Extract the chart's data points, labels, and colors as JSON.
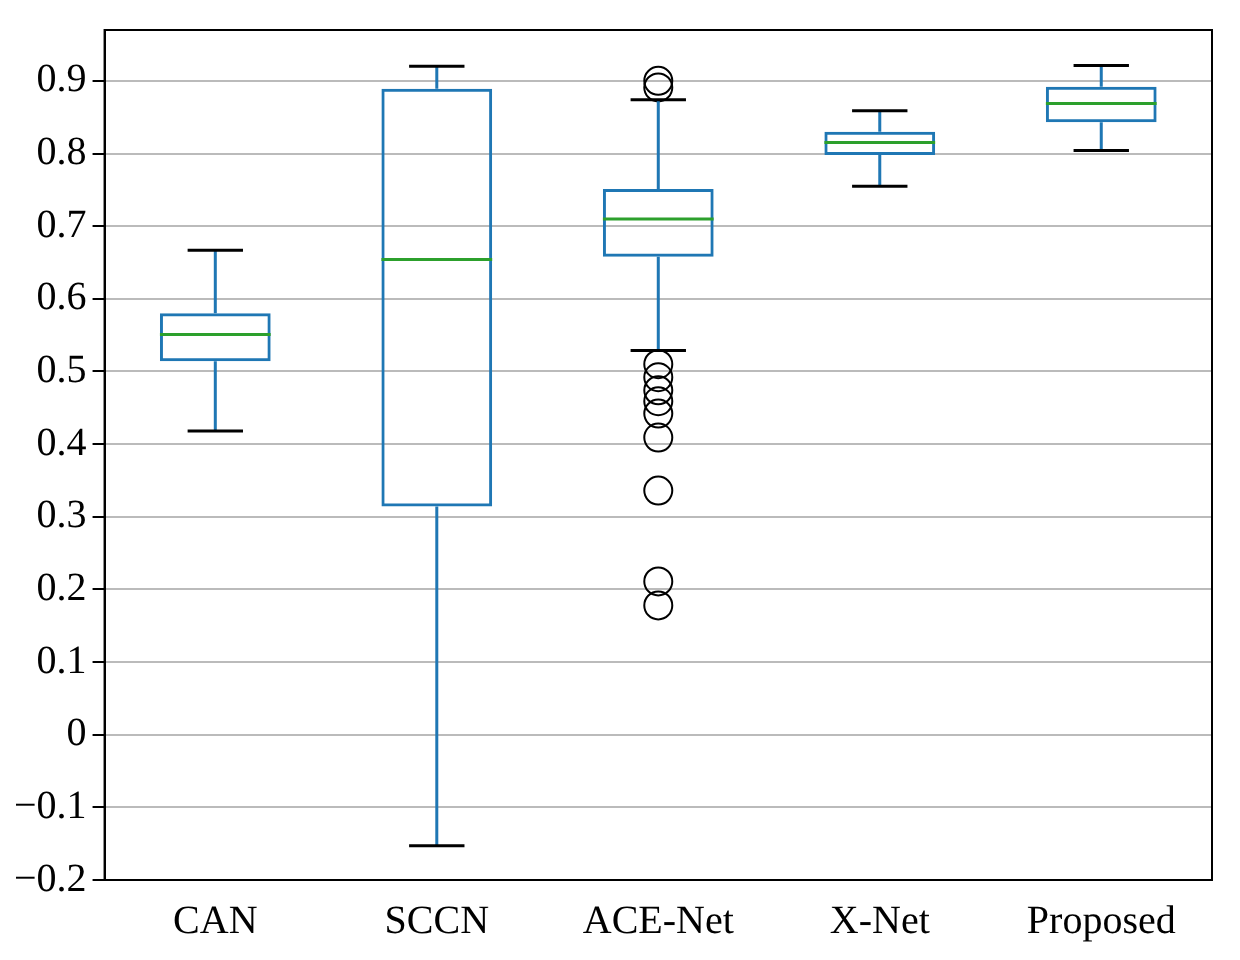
{
  "chart_data": {
    "type": "box",
    "categories": [
      "CAN",
      "SCCN",
      "ACE-Net",
      "X-Net",
      "Proposed"
    ],
    "series": [
      {
        "color": "#1f77b4",
        "boxes": [
          {
            "low": 0.418,
            "q1": 0.514,
            "median": 0.551,
            "q3": 0.58,
            "high": 0.667
          },
          {
            "low": -0.153,
            "q1": 0.314,
            "median": 0.654,
            "q3": 0.889,
            "high": 0.92
          },
          {
            "low": 0.529,
            "q1": 0.658,
            "median": 0.71,
            "q3": 0.751,
            "high": 0.874,
            "outliers": [
              0.9,
              0.891,
              0.51,
              0.492,
              0.474,
              0.459,
              0.442,
              0.409,
              0.336,
              0.211,
              0.178
            ]
          },
          {
            "low": 0.755,
            "q1": 0.798,
            "median": 0.815,
            "q3": 0.83,
            "high": 0.859
          },
          {
            "low": 0.804,
            "q1": 0.843,
            "median": 0.869,
            "q3": 0.892,
            "high": 0.921
          }
        ]
      }
    ],
    "ylim": [
      -0.2,
      0.97
    ],
    "yticks": [
      -0.2,
      -0.1,
      0,
      0.1,
      0.2,
      0.3,
      0.4,
      0.5,
      0.6,
      0.7,
      0.8,
      0.9
    ],
    "grid": "y",
    "legend": false,
    "marker": "circle"
  }
}
